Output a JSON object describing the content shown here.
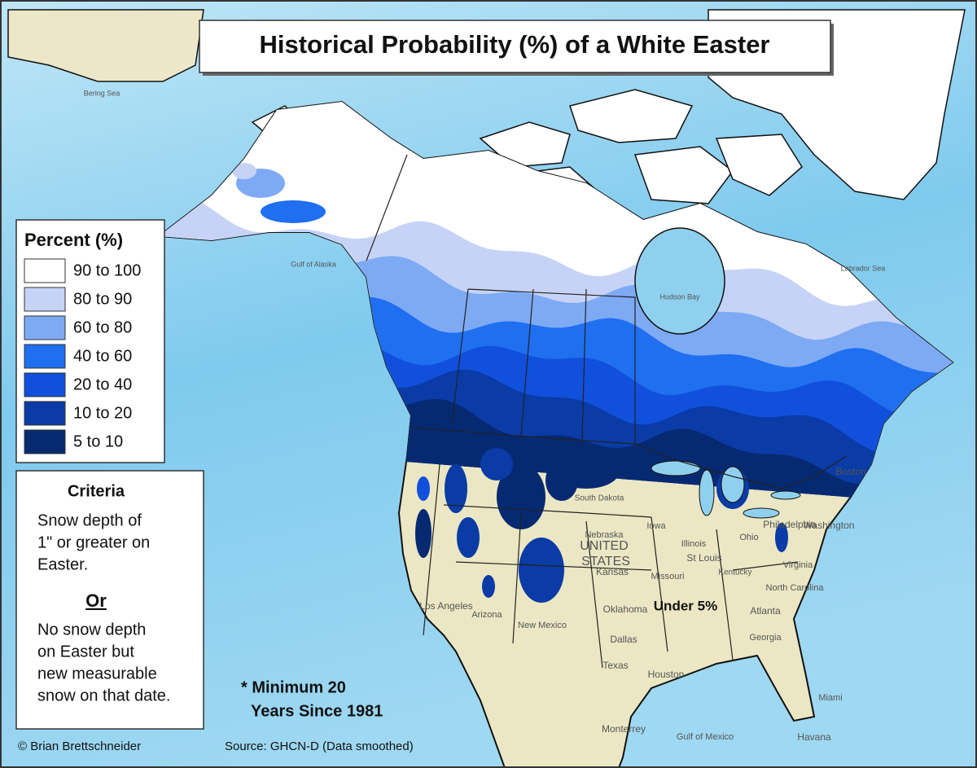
{
  "title": "Historical Probability (%) of a White Easter",
  "legend": {
    "title": "Percent (%)",
    "items": [
      {
        "label": "90 to 100",
        "color": "#ffffff"
      },
      {
        "label": "80 to 90",
        "color": "#c6d3f6"
      },
      {
        "label": "60 to 80",
        "color": "#7eaaf4"
      },
      {
        "label": "40 to 60",
        "color": "#1f6ff0"
      },
      {
        "label": "20 to 40",
        "color": "#1050dc"
      },
      {
        "label": "10 to 20",
        "color": "#0a3ba6"
      },
      {
        "label": "5 to 10",
        "color": "#062a72"
      }
    ]
  },
  "criteria": {
    "title": "Criteria",
    "lines_1": [
      "Snow depth of",
      "1\" or greater on",
      "Easter."
    ],
    "or": "Or",
    "lines_2": [
      "No snow depth",
      "on Easter but",
      "new measurable",
      "snow on that date."
    ]
  },
  "annotations": {
    "under": "Under 5%",
    "minimum": [
      "* Minimum 20",
      "Years Since 1981"
    ]
  },
  "credits": {
    "author": "© Brian Brettschneider",
    "source": "Source: GHCN-D (Data smoothed)"
  },
  "map_labels": [
    "UNITED",
    "STATES",
    "Hudson Bay",
    "Gulf of Mexico",
    "Labrador Sea",
    "Gulf of Alaska",
    "Bering Sea",
    "Texas",
    "Dallas",
    "Houston",
    "Oklahoma",
    "Kansas",
    "Nebraska",
    "South Dakota",
    "Iowa",
    "Illinois",
    "Missouri",
    "St Louis",
    "Ohio",
    "Kentucky",
    "Atlanta",
    "Georgia",
    "Virginia",
    "North Carolina",
    "Philadelphia",
    "Washington",
    "Boston",
    "Los Angeles",
    "Arizona",
    "New Mexico",
    "Monterrey",
    "Miami",
    "Havana"
  ]
}
